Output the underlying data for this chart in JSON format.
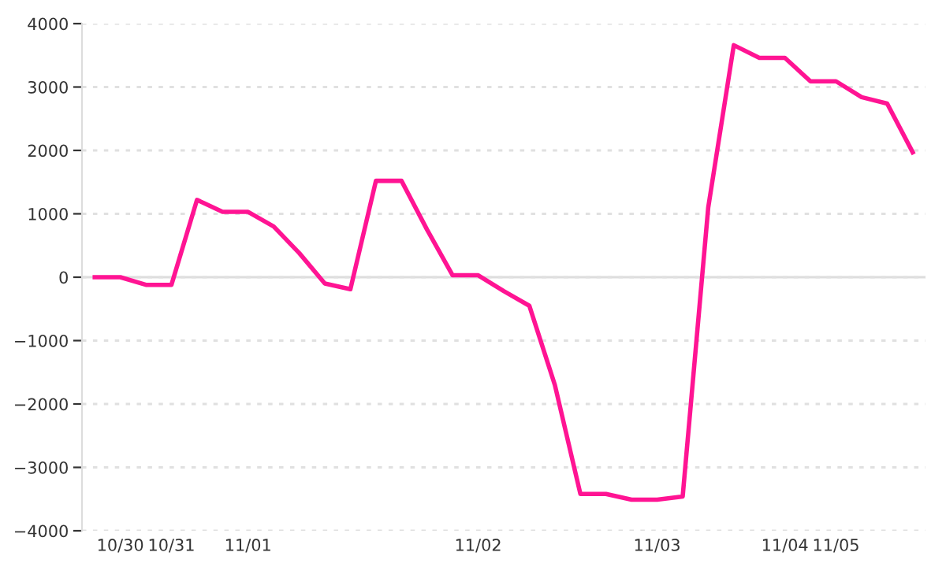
{
  "chart_data": {
    "type": "line",
    "categories": [
      null,
      "10/30",
      null,
      "10/31",
      null,
      null,
      "11/01",
      null,
      null,
      null,
      null,
      null,
      null,
      null,
      null,
      "11/02",
      null,
      null,
      null,
      null,
      null,
      null,
      "11/03",
      null,
      null,
      null,
      null,
      "11/04",
      null,
      "11/05",
      null,
      null,
      null
    ],
    "series": [
      {
        "color": "#ff1493",
        "values": [
          0,
          0,
          -120,
          -120,
          1220,
          1030,
          1030,
          800,
          380,
          -100,
          -190,
          1520,
          1520,
          750,
          30,
          30,
          -220,
          -450,
          -1700,
          -3420,
          -3420,
          -3510,
          -3510,
          -3460,
          1100,
          3660,
          3460,
          3460,
          3090,
          3090,
          2840,
          2740,
          1970
        ]
      }
    ],
    "ylim": [
      -4000,
      4000
    ],
    "yticks": [
      -4000,
      -3000,
      -2000,
      -1000,
      0,
      1000,
      2000,
      3000,
      4000
    ],
    "grid": "y",
    "legend": false,
    "marker": "none",
    "line_style": "solid"
  }
}
